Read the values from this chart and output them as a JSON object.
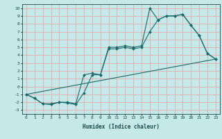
{
  "title": "",
  "xlabel": "Humidex (Indice chaleur)",
  "bg_color": "#c5e8e8",
  "grid_color": "#e8a0a0",
  "line_color": "#1a6b6b",
  "xlim": [
    -0.5,
    23.5
  ],
  "ylim": [
    -3.5,
    10.5
  ],
  "xticks": [
    0,
    1,
    2,
    3,
    4,
    5,
    6,
    7,
    8,
    9,
    10,
    11,
    12,
    13,
    14,
    15,
    16,
    17,
    18,
    19,
    20,
    21,
    22,
    23
  ],
  "yticks": [
    -3,
    -2,
    -1,
    0,
    1,
    2,
    3,
    4,
    5,
    6,
    7,
    8,
    9,
    10
  ],
  "line1_x": [
    0,
    1,
    2,
    3,
    4,
    5,
    6,
    7,
    8,
    9,
    10,
    11,
    12,
    13,
    14,
    15,
    16,
    17,
    18,
    19,
    20,
    21,
    22,
    23
  ],
  "line1_y": [
    -1,
    -1.5,
    -2.2,
    -2.2,
    -2,
    -2,
    -2.2,
    1.5,
    1.7,
    1.5,
    5.0,
    5.0,
    5.2,
    5.0,
    5.2,
    10.0,
    8.5,
    9.0,
    9.0,
    9.2,
    7.8,
    6.5,
    4.2,
    3.5
  ],
  "line2_x": [
    0,
    1,
    2,
    3,
    4,
    5,
    6,
    7,
    8,
    9,
    10,
    11,
    12,
    13,
    14,
    15,
    16,
    17,
    18,
    19,
    20,
    21,
    22,
    23
  ],
  "line2_y": [
    -1,
    -1.5,
    -2.2,
    -2.3,
    -2,
    -2.1,
    -2.3,
    -0.8,
    1.5,
    1.5,
    4.8,
    4.8,
    5.0,
    4.8,
    5.0,
    7.0,
    8.5,
    9.0,
    9.0,
    9.2,
    7.8,
    6.5,
    4.2,
    3.5
  ],
  "line3_x": [
    0,
    23
  ],
  "line3_y": [
    -1,
    3.5
  ]
}
